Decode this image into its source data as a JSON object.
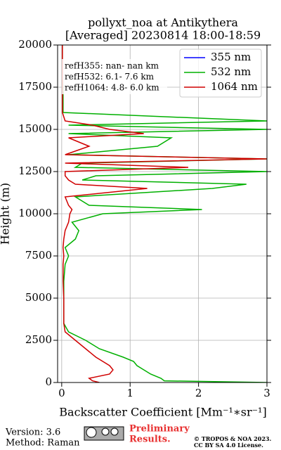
{
  "chart_data": {
    "type": "profile",
    "title": "pollyxt_noa at Antikythera",
    "subtitle": "[Averaged] 20230814 18:00-18:59",
    "xlabel": "Backscatter Coefficient [Mm⁻¹∗sr⁻¹]",
    "ylabel": "Height (m)",
    "annotations": [
      "refH355:  nan- nan km",
      "refH532:  6.1- 7.6 km",
      "refH1064:  4.8- 6.0 km"
    ],
    "y": [
      0,
      100,
      250,
      500,
      750,
      1000,
      1250,
      1500,
      2000,
      2500,
      3000,
      3500,
      4000,
      5000,
      6000,
      7000,
      7500,
      8000,
      8500,
      9000,
      9500,
      10000,
      10250,
      10500,
      11000,
      11500,
      11750,
      12000,
      12250,
      12500,
      12750,
      13000,
      13250,
      13500,
      14000,
      14500,
      14750,
      15000,
      15250,
      15500,
      16000,
      17000,
      18000,
      19000,
      20000
    ],
    "series": [
      {
        "name": "355 nm",
        "color": "#0000ff",
        "values": [
          null,
          null,
          null,
          null,
          null,
          null,
          null,
          null,
          null,
          null,
          null,
          null,
          null,
          null,
          null,
          null,
          null,
          null,
          null,
          null,
          null,
          null,
          null,
          null,
          null,
          null,
          null,
          null,
          null,
          null,
          null,
          null,
          null,
          null,
          null,
          null,
          null,
          null,
          null,
          null,
          null,
          null,
          null,
          null,
          null
        ]
      },
      {
        "name": "532 nm",
        "color": "#00b000",
        "values": [
          3,
          1.5,
          1.45,
          1.3,
          1.2,
          1.1,
          1.05,
          0.9,
          0.55,
          0.35,
          0.1,
          0.03,
          0.03,
          0.03,
          0.03,
          0.05,
          0.1,
          0.05,
          0.2,
          0.25,
          0.15,
          0.6,
          2.05,
          0.4,
          0.2,
          2.2,
          2.7,
          0.3,
          0.5,
          3,
          0.2,
          0.3,
          3,
          0.1,
          1.4,
          1.6,
          0.1,
          3,
          0.1,
          3,
          0.02,
          0.02,
          0.01,
          0.01,
          0.01
        ]
      },
      {
        "name": "1064 nm",
        "color": "#d00000",
        "values": [
          0.55,
          0.45,
          0.4,
          0.7,
          0.75,
          0.7,
          0.6,
          0.5,
          0.35,
          0.2,
          0.05,
          0.03,
          0.03,
          0.03,
          0.02,
          0.02,
          0.03,
          0.02,
          0.03,
          0.05,
          0.1,
          0.12,
          0.15,
          0.1,
          0.05,
          1.25,
          0.2,
          0.1,
          0.05,
          0.05,
          1.85,
          0.05,
          3,
          0.05,
          0.4,
          0.1,
          1.2,
          0.7,
          0.45,
          0.05,
          0.01,
          0.01,
          0.01,
          0.01,
          0.01
        ]
      }
    ],
    "xlim": [
      -0.06,
      3
    ],
    "xticks": [
      0,
      1,
      2,
      3
    ],
    "ylim": [
      0,
      20000
    ],
    "yticks": [
      0,
      2500,
      5000,
      7500,
      10000,
      12500,
      15000,
      17500,
      20000
    ],
    "grid": true,
    "legend": "upper right"
  },
  "footer": {
    "version": "Version: 3.6",
    "method": "Method: Raman",
    "status": [
      "Preliminary",
      "Results."
    ],
    "copyright": "© TROPOS & NOA 2023.",
    "license": "CC BY SA 4.0 License."
  }
}
